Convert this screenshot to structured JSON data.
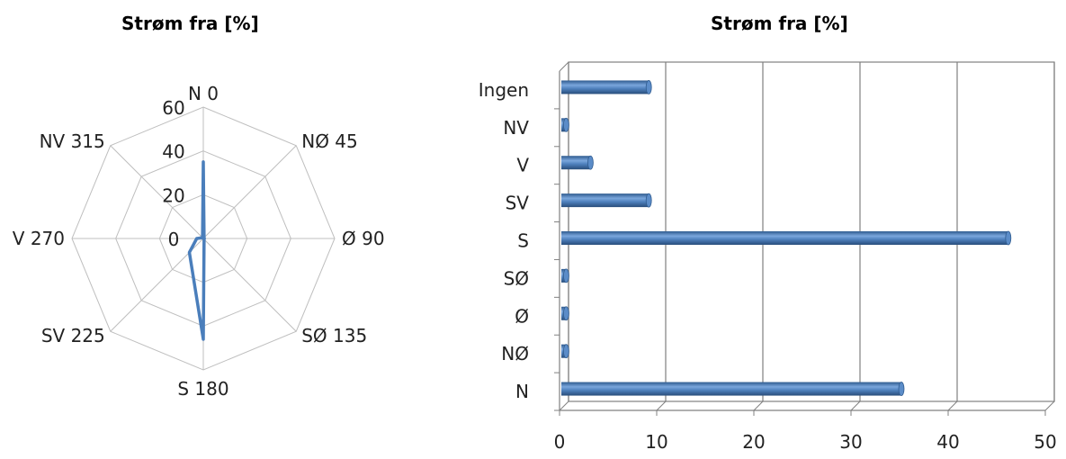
{
  "chart_data": [
    {
      "type": "radar",
      "title": "Strøm fra [%]",
      "categories": [
        "N 0",
        "NØ 45",
        "Ø 90",
        "SØ 135",
        "S 180",
        "SV 225",
        "V 270",
        "NV 315"
      ],
      "radial_ticks": [
        "0",
        "20",
        "40",
        "60"
      ],
      "rlim": [
        0,
        60
      ],
      "series": [
        {
          "values": [
            35,
            0.5,
            0.5,
            0.5,
            46,
            9,
            3,
            0.5
          ],
          "color": "#4a7ebb"
        }
      ],
      "grid": true
    },
    {
      "type": "bar",
      "orientation": "horizontal",
      "title": "Strøm fra [%]",
      "categories": [
        "N",
        "NØ",
        "Ø",
        "SØ",
        "S",
        "SV",
        "V",
        "NV",
        "Ingen"
      ],
      "values": [
        35,
        0.5,
        0.5,
        0.5,
        46,
        9,
        3,
        0.5,
        9
      ],
      "x_ticks": [
        "0",
        "10",
        "20",
        "30",
        "40",
        "50"
      ],
      "xlim": [
        0,
        50
      ],
      "grid": true,
      "bar_color": "#4f81bd"
    }
  ]
}
